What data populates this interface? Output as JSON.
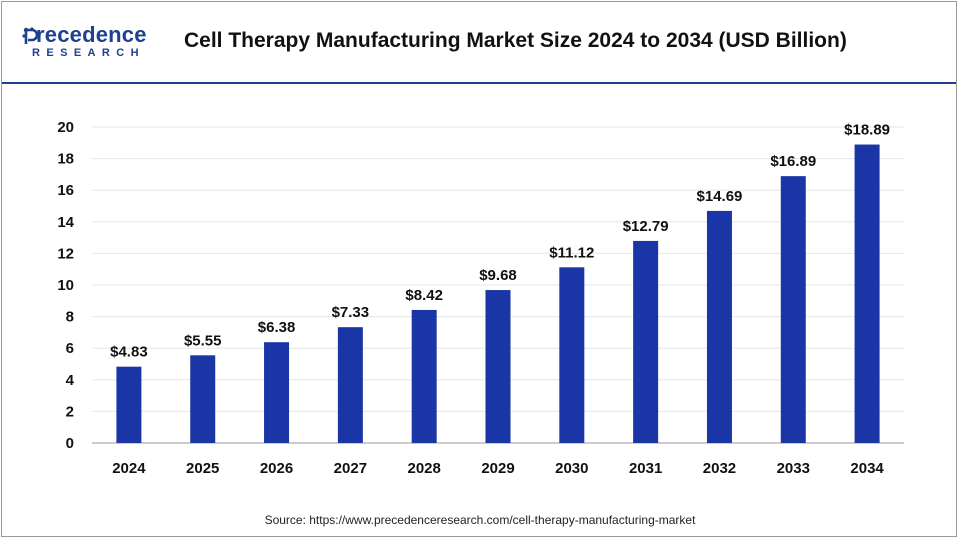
{
  "header": {
    "title": "Cell Therapy Manufacturing Market Size 2024 to 2034 (USD Billion)",
    "logo_word": "recedence",
    "logo_subword": "RESEARCH"
  },
  "footer": {
    "source": "Source: https://www.precedenceresearch.com/cell-therapy-manufacturing-market"
  },
  "colors": {
    "bar": "#1a35a6",
    "brand": "#1f3f8f",
    "grid": "#e6e6e6"
  },
  "chart_data": {
    "type": "bar",
    "title": "Cell Therapy Manufacturing Market Size 2024 to 2034 (USD Billion)",
    "categories": [
      "2024",
      "2025",
      "2026",
      "2027",
      "2028",
      "2029",
      "2030",
      "2031",
      "2032",
      "2033",
      "2034"
    ],
    "values": [
      4.83,
      5.55,
      6.38,
      7.33,
      8.42,
      9.68,
      11.12,
      12.79,
      14.69,
      16.89,
      18.89
    ],
    "value_labels": [
      "$4.83",
      "$5.55",
      "$6.38",
      "$7.33",
      "$8.42",
      "$9.68",
      "$11.12",
      "$12.79",
      "$14.69",
      "$16.89",
      "$18.89"
    ],
    "yticks": [
      "0",
      "2",
      "4",
      "6",
      "8",
      "10",
      "12",
      "14",
      "16",
      "18",
      "20"
    ],
    "ylim": [
      0,
      20
    ],
    "xlabel": "",
    "ylabel": "",
    "grid": true
  }
}
